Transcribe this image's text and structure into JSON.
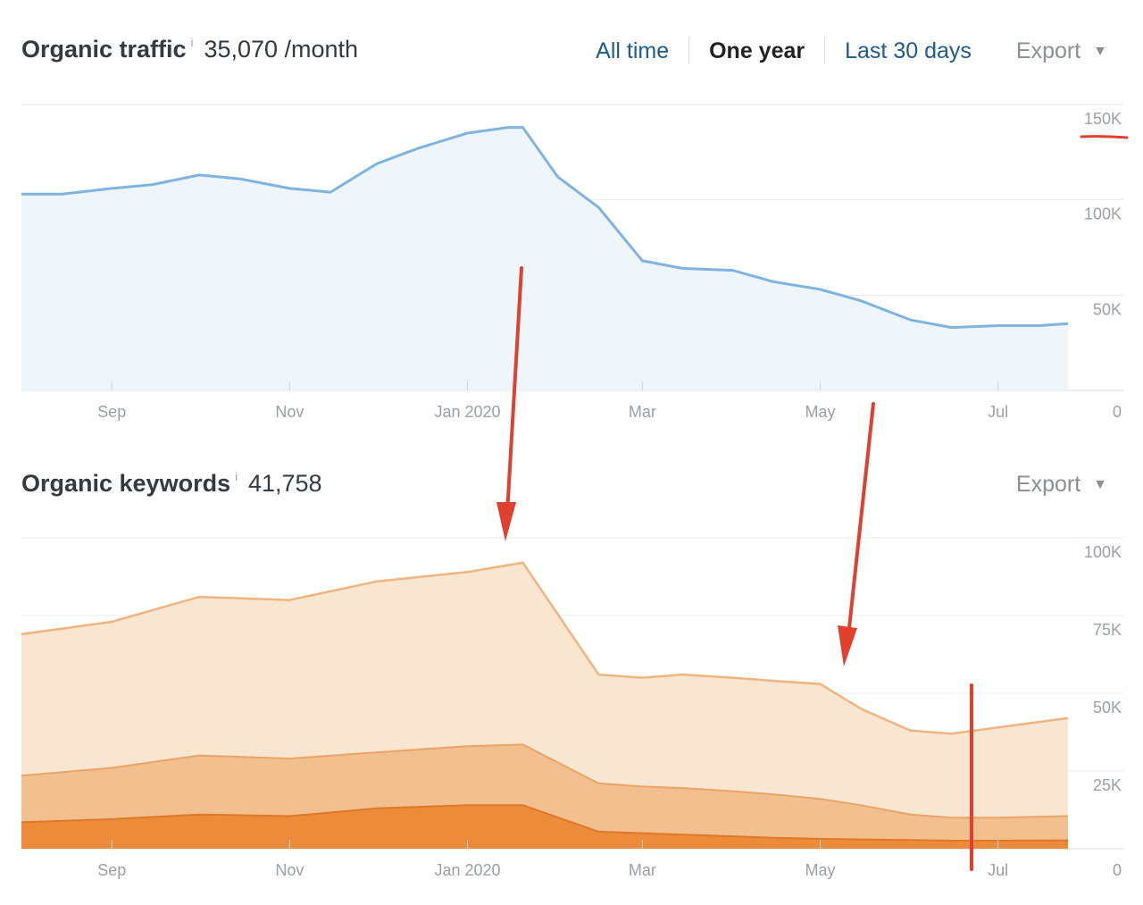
{
  "traffic": {
    "title": "Organic traffic",
    "info": "i",
    "value": "35,070 /month",
    "controls": [
      "All time",
      "One year",
      "Last 30 days"
    ],
    "active_control": "One year",
    "export_label": "Export"
  },
  "keywords": {
    "title": "Organic keywords",
    "info": "i",
    "value": "41,758",
    "export_label": "Export"
  },
  "colors": {
    "traffic_line": "#7fb3e0",
    "traffic_fill": "#eef6fc",
    "kw_band_top": "#f8e6d0",
    "kw_band_mid": "#f2bf8e",
    "kw_band_low": "#ec8c3a",
    "kw_line_top": "#f0b47e",
    "annotation": "#e0402e"
  },
  "chart_data": [
    {
      "type": "area",
      "title": "Organic traffic",
      "x_ticks": [
        "Sep",
        "Nov",
        "Jan 2020",
        "Mar",
        "May",
        "Jul"
      ],
      "y_ticks": [
        "150K",
        "100K",
        "50K",
        "0"
      ],
      "ylim": [
        0,
        150000
      ],
      "grid": true,
      "series": [
        {
          "x": [
            "Aug 1",
            "Aug 15",
            "Sep 1",
            "Sep 15",
            "Oct 1",
            "Oct 15",
            "Nov 1",
            "Nov 15",
            "Dec 1",
            "Dec 15",
            "Jan 1",
            "Jan 15",
            "Jan 20",
            "Feb 1",
            "Feb 15",
            "Mar 1",
            "Mar 15",
            "Apr 1",
            "Apr 15",
            "May 1",
            "May 15",
            "Jun 1",
            "Jun 15",
            "Jul 1",
            "Jul 15",
            "Jul 25"
          ],
          "values": [
            103000,
            103000,
            106000,
            108000,
            113000,
            111000,
            106000,
            104000,
            119000,
            127000,
            135000,
            138000,
            138000,
            112000,
            96000,
            68000,
            64000,
            63000,
            57000,
            53000,
            47000,
            37000,
            33000,
            34000,
            34000,
            35070
          ]
        }
      ]
    },
    {
      "type": "area",
      "title": "Organic keywords",
      "x_ticks": [
        "Sep",
        "Nov",
        "Jan 2020",
        "Mar",
        "May",
        "Jul"
      ],
      "y_ticks": [
        "100K",
        "75K",
        "50K",
        "25K",
        "0"
      ],
      "ylim": [
        0,
        100000
      ],
      "grid": true,
      "x": [
        "Aug 1",
        "Sep 1",
        "Oct 1",
        "Nov 1",
        "Dec 1",
        "Jan 1",
        "Jan 20",
        "Feb 15",
        "Mar 1",
        "Mar 15",
        "Apr 1",
        "Apr 15",
        "May 1",
        "May 15",
        "Jun 1",
        "Jun 15",
        "Jul 1",
        "Jul 25"
      ],
      "series": [
        {
          "values": [
            69000,
            73000,
            81000,
            80000,
            86000,
            89000,
            92000,
            56000,
            55000,
            56000,
            55000,
            54000,
            53000,
            45000,
            38000,
            37000,
            39000,
            42000
          ]
        },
        {
          "values": [
            23500,
            26000,
            30000,
            29000,
            31000,
            33000,
            33500,
            21000,
            20000,
            19500,
            18500,
            17500,
            16000,
            14000,
            11000,
            10000,
            10000,
            10500
          ]
        },
        {
          "values": [
            8500,
            9500,
            11000,
            10500,
            13000,
            14000,
            14000,
            5500,
            5000,
            4500,
            4000,
            3500,
            3200,
            3000,
            2800,
            2600,
            2600,
            2700
          ]
        }
      ]
    }
  ]
}
